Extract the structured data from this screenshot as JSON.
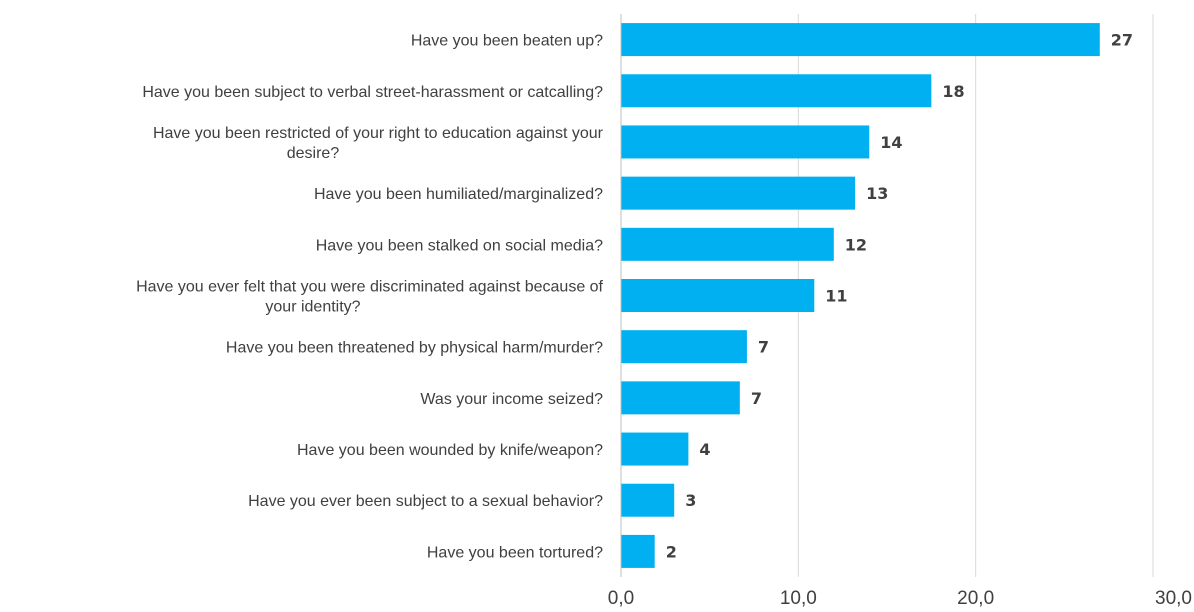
{
  "chart_data": {
    "type": "bar",
    "orientation": "horizontal",
    "title": "",
    "xlabel": "",
    "ylabel": "",
    "categories": [
      [
        "Have you been beaten up?"
      ],
      [
        "Have you been subject to verbal street-harassment or catcalling?"
      ],
      [
        "Have you been restricted of your right to education against your",
        "desire?"
      ],
      [
        "Have you been humiliated/marginalized?"
      ],
      [
        "Have you been stalked on social media?"
      ],
      [
        "Have you ever felt that you were discriminated against because of",
        "your identity?"
      ],
      [
        "Have you been threatened by physical harm/murder?"
      ],
      [
        "Was your income seized?"
      ],
      [
        "Have you been wounded by knife/weapon?"
      ],
      [
        "Have you ever been subject to a sexual behavior?"
      ],
      [
        "Have you been tortured?"
      ]
    ],
    "values": [
      27.0,
      17.5,
      14.0,
      13.2,
      12.0,
      10.9,
      7.1,
      6.7,
      3.8,
      3.0,
      1.9
    ],
    "value_labels": [
      "27",
      "18",
      "14",
      "13",
      "12",
      "11",
      "7",
      "7",
      "4",
      "3",
      "2"
    ],
    "xlim": [
      0,
      30
    ],
    "x_ticks": [
      0,
      10,
      20,
      30
    ],
    "x_tick_labels": [
      "0,0",
      "10,0",
      "20,0",
      "30,0"
    ],
    "grid": true,
    "legend": "none",
    "colors": {
      "bar": "#00b0f0",
      "grid": "#d9d9d9",
      "text": "#404040"
    }
  }
}
